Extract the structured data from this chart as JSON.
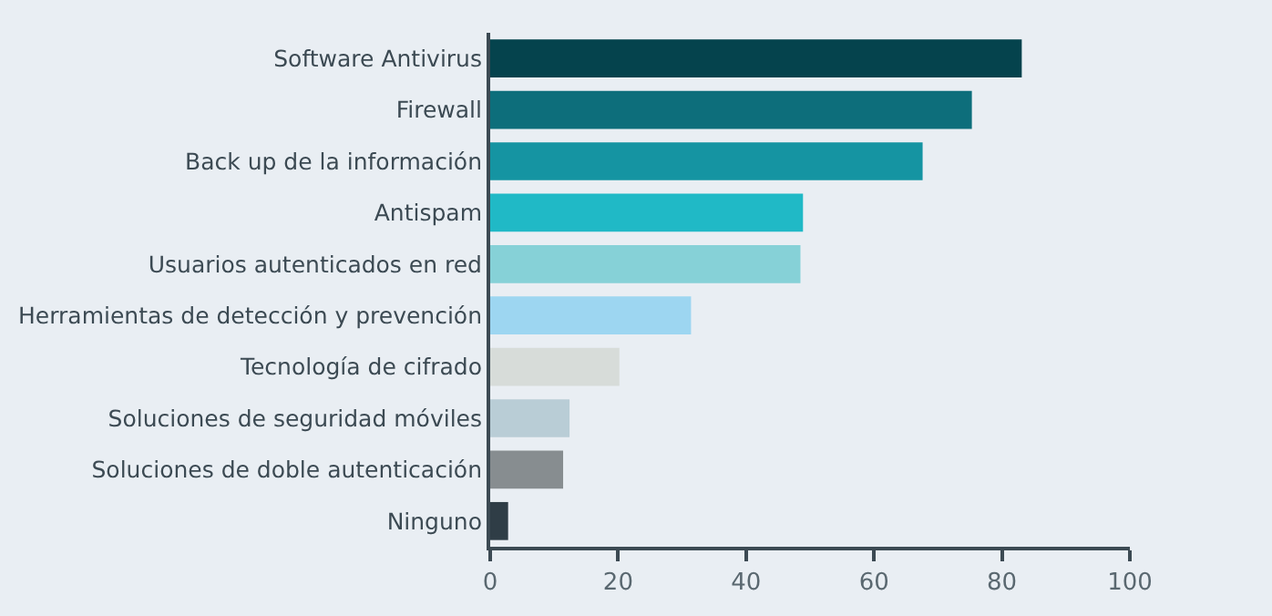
{
  "chart_data": {
    "type": "bar",
    "orientation": "horizontal",
    "categories": [
      "Software Antivirus",
      "Firewall",
      "Back up de la información",
      "Antispam",
      "Usuarios autenticados en red",
      "Herramientas de detección y prevención",
      "Tecnología de cifrado",
      "Soluciones de seguridad móviles",
      "Soluciones de doble autenticación",
      "Ninguno"
    ],
    "values": [
      83.1,
      75.3,
      67.6,
      48.9,
      48.5,
      31.4,
      20.2,
      12.4,
      11.4,
      2.8
    ],
    "colors": [
      "#05434d",
      "#0d6e7b",
      "#1594a2",
      "#20b9c6",
      "#86d1d7",
      "#9dd6f1",
      "#d7dcd9",
      "#b9cdd6",
      "#878d90",
      "#2f3d46"
    ],
    "xlim": [
      0,
      100
    ],
    "xticks": [
      0,
      20,
      40,
      60,
      80,
      100
    ],
    "grid": false
  }
}
